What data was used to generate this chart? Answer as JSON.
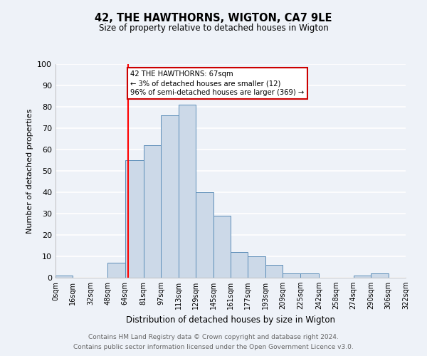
{
  "title": "42, THE HAWTHORNS, WIGTON, CA7 9LE",
  "subtitle": "Size of property relative to detached houses in Wigton",
  "xlabel": "Distribution of detached houses by size in Wigton",
  "ylabel": "Number of detached properties",
  "bar_color": "#ccd9e8",
  "bar_edge_color": "#5b8db8",
  "background_color": "#eef2f8",
  "grid_color": "#ffffff",
  "bin_edges": [
    0,
    16,
    32,
    48,
    64,
    81,
    97,
    113,
    129,
    145,
    161,
    177,
    193,
    209,
    225,
    242,
    258,
    274,
    290,
    306,
    322
  ],
  "bar_heights": [
    1,
    0,
    0,
    7,
    55,
    62,
    76,
    81,
    40,
    29,
    12,
    10,
    6,
    2,
    2,
    0,
    0,
    1,
    2,
    0
  ],
  "tick_labels": [
    "0sqm",
    "16sqm",
    "32sqm",
    "48sqm",
    "64sqm",
    "81sqm",
    "97sqm",
    "113sqm",
    "129sqm",
    "145sqm",
    "161sqm",
    "177sqm",
    "193sqm",
    "209sqm",
    "225sqm",
    "242sqm",
    "258sqm",
    "274sqm",
    "290sqm",
    "306sqm",
    "322sqm"
  ],
  "ylim": [
    0,
    100
  ],
  "yticks": [
    0,
    10,
    20,
    30,
    40,
    50,
    60,
    70,
    80,
    90,
    100
  ],
  "red_line_x": 67,
  "annotation_text": "42 THE HAWTHORNS: 67sqm\n← 3% of detached houses are smaller (12)\n96% of semi-detached houses are larger (369) →",
  "annotation_box_color": "#ffffff",
  "annotation_box_edge": "#cc0000",
  "footnote1": "Contains HM Land Registry data © Crown copyright and database right 2024.",
  "footnote2": "Contains public sector information licensed under the Open Government Licence v3.0."
}
